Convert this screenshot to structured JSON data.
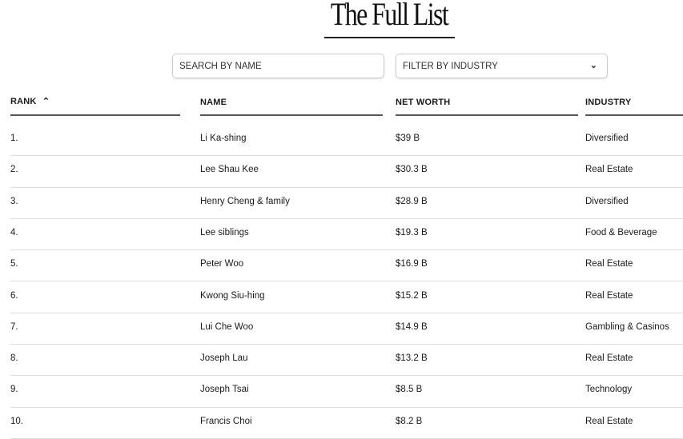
{
  "title": "The Full List",
  "search": {
    "placeholder": "SEARCH BY NAME"
  },
  "filter": {
    "label": "FILTER BY INDUSTRY",
    "icon": "chevron-down-icon"
  },
  "columns": {
    "rank": "RANK",
    "name": "NAME",
    "net_worth": "NET WORTH",
    "industry": "INDUSTRY",
    "sort_icon": "chevron-up-icon"
  },
  "rows": [
    {
      "rank": "1.",
      "name": "Li Ka-shing",
      "net_worth": "$39 B",
      "industry": "Diversified"
    },
    {
      "rank": "2.",
      "name": "Lee Shau Kee",
      "net_worth": "$30.3 B",
      "industry": "Real Estate"
    },
    {
      "rank": "3.",
      "name": "Henry Cheng & family",
      "net_worth": "$28.9 B",
      "industry": "Diversified"
    },
    {
      "rank": "4.",
      "name": "Lee siblings",
      "net_worth": "$19.3 B",
      "industry": "Food & Beverage"
    },
    {
      "rank": "5.",
      "name": "Peter Woo",
      "net_worth": "$16.9 B",
      "industry": "Real Estate"
    },
    {
      "rank": "6.",
      "name": "Kwong Siu-hing",
      "net_worth": "$15.2 B",
      "industry": "Real Estate"
    },
    {
      "rank": "7.",
      "name": "Lui Che Woo",
      "net_worth": "$14.9 B",
      "industry": "Gambling & Casinos"
    },
    {
      "rank": "8.",
      "name": "Joseph Lau",
      "net_worth": "$13.2 B",
      "industry": "Real Estate"
    },
    {
      "rank": "9.",
      "name": "Joseph Tsai",
      "net_worth": "$8.5 B",
      "industry": "Technology"
    },
    {
      "rank": "10.",
      "name": "Francis Choi",
      "net_worth": "$8.2 B",
      "industry": "Real Estate"
    }
  ]
}
